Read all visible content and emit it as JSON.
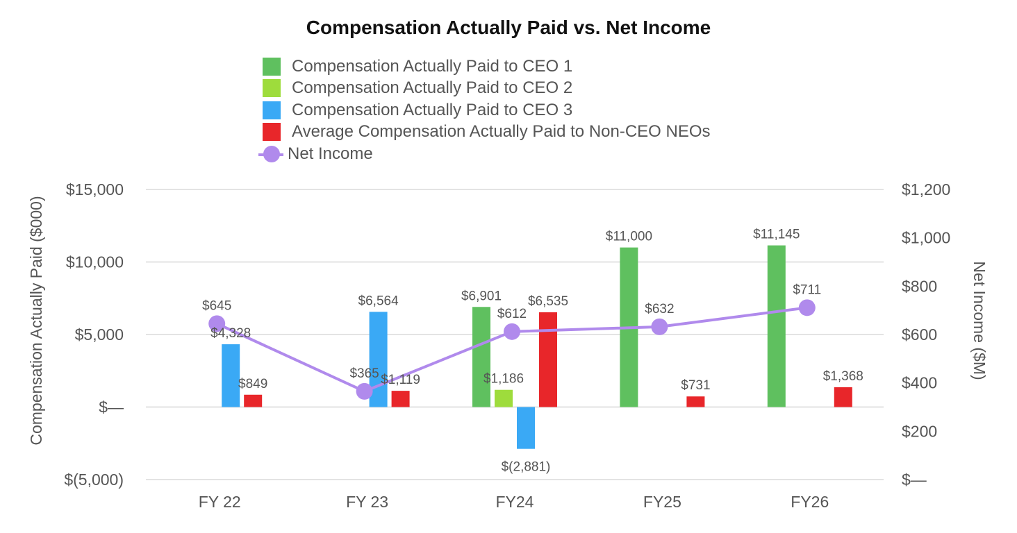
{
  "chart_data": {
    "type": "bar",
    "title": "Compensation Actually Paid vs. Net Income",
    "categories": [
      "FY 22",
      "FY 23",
      "FY24",
      "FY25",
      "FY26"
    ],
    "y_left": {
      "label": "Compensation Actually Paid ($000)",
      "min": -5000,
      "max": 15000,
      "ticks": [
        15000,
        10000,
        5000,
        0,
        -5000
      ],
      "tick_labels": [
        "$15,000",
        "$10,000",
        "$5,000",
        "$—",
        "$(5,000)"
      ]
    },
    "y_right": {
      "label": "Net Income ($M)",
      "min": 0,
      "max": 1200,
      "ticks": [
        1200,
        1000,
        800,
        600,
        400,
        200,
        0
      ],
      "tick_labels": [
        "$1,200",
        "$1,000",
        "$800",
        "$600",
        "$400",
        "$200",
        "$—"
      ]
    },
    "grid": true,
    "legend_position": "top",
    "series": [
      {
        "name": "Compensation Actually Paid to CEO 1",
        "kind": "bar",
        "axis": "left",
        "color": "#5fc05f",
        "values": [
          null,
          null,
          6901,
          11000,
          11145
        ],
        "labels": [
          null,
          null,
          "$6,901",
          "$11,000",
          "$11,145"
        ]
      },
      {
        "name": "Compensation Actually Paid to CEO 2",
        "kind": "bar",
        "axis": "left",
        "color": "#9edc3c",
        "values": [
          null,
          null,
          1186,
          null,
          null
        ],
        "labels": [
          null,
          null,
          "$1,186",
          null,
          null
        ]
      },
      {
        "name": "Compensation Actually Paid to CEO 3",
        "kind": "bar",
        "axis": "left",
        "color": "#3aa9f5",
        "values": [
          4328,
          6564,
          -2881,
          null,
          null
        ],
        "labels": [
          "$4,328",
          "$6,564",
          "$(2,881)",
          null,
          null
        ]
      },
      {
        "name": "Average Compensation Actually Paid to Non-CEO NEOs",
        "kind": "bar",
        "axis": "left",
        "color": "#e8262a",
        "values": [
          849,
          1119,
          6535,
          731,
          1368
        ],
        "labels": [
          "$849",
          "$1,119",
          "$6,535",
          "$731",
          "$1,368"
        ]
      },
      {
        "name": "Net Income",
        "kind": "line",
        "axis": "right",
        "color": "#b08aec",
        "values": [
          645,
          365,
          612,
          632,
          711
        ],
        "labels": [
          "$645",
          "$365",
          "$612",
          "$632",
          "$711"
        ]
      }
    ]
  }
}
